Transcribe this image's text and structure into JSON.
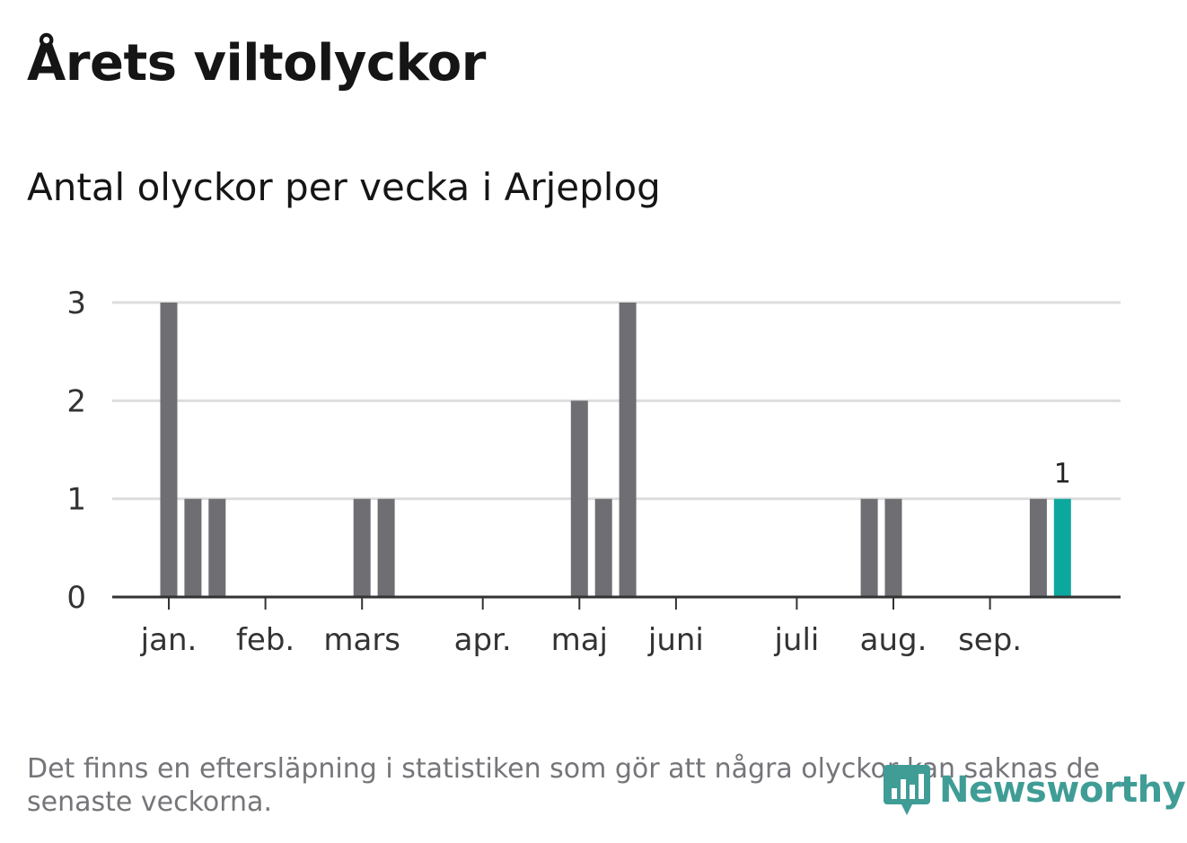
{
  "title": "Årets viltolyckor",
  "subtitle": "Antal olyckor per vecka i Arjeplog",
  "footnote": "Det finns en eftersläpning i statistiken som gör att några olyckor kan saknas de senaste veckorna.",
  "brand": {
    "name": "Newsworthy",
    "icon": "newsworthy-logo-icon"
  },
  "colors": {
    "bar": "#6e6e73",
    "highlight": "#0da89d",
    "grid": "#dddddd",
    "axis": "#333333"
  },
  "chart_data": {
    "type": "bar",
    "xlabel": "",
    "ylabel": "",
    "ylim": [
      0,
      3
    ],
    "yticks": [
      "0",
      "1",
      "2",
      "3"
    ],
    "grid": true,
    "month_ticks": [
      {
        "label": "jan.",
        "week": 1
      },
      {
        "label": "feb.",
        "week": 5
      },
      {
        "label": "mars",
        "week": 9
      },
      {
        "label": "apr.",
        "week": 14
      },
      {
        "label": "maj",
        "week": 18
      },
      {
        "label": "juni",
        "week": 22
      },
      {
        "label": "juli",
        "week": 27
      },
      {
        "label": "aug.",
        "week": 31
      },
      {
        "label": "sep.",
        "week": 35
      }
    ],
    "weeks": [
      1,
      2,
      3,
      4,
      5,
      6,
      7,
      8,
      9,
      10,
      11,
      12,
      13,
      14,
      15,
      16,
      17,
      18,
      19,
      20,
      21,
      22,
      23,
      24,
      25,
      26,
      27,
      28,
      29,
      30,
      31,
      32,
      33,
      34,
      35,
      36,
      37,
      38
    ],
    "values": [
      3,
      1,
      1,
      0,
      0,
      0,
      0,
      0,
      1,
      1,
      0,
      0,
      0,
      0,
      0,
      0,
      0,
      2,
      1,
      3,
      0,
      0,
      0,
      0,
      0,
      0,
      0,
      0,
      0,
      1,
      1,
      0,
      0,
      0,
      0,
      0,
      1,
      1
    ],
    "highlight_week": 38,
    "highlight_label": "1"
  }
}
